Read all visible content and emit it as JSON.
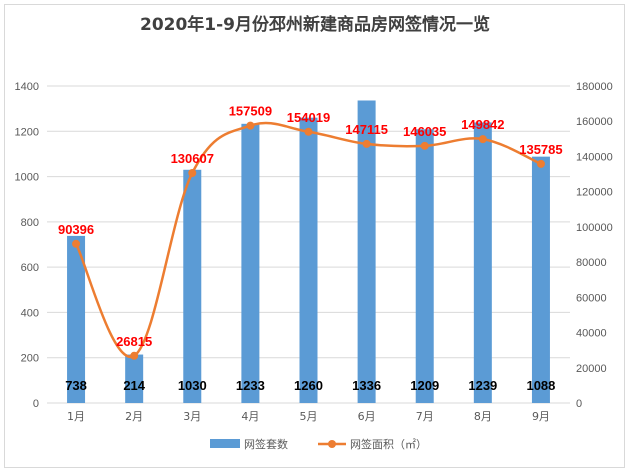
{
  "chart_data": {
    "type": "bar+line",
    "title": "2020年1-9月份邳州新建商品房网签情况一览",
    "categories": [
      "1月",
      "2月",
      "3月",
      "4月",
      "5月",
      "6月",
      "7月",
      "8月",
      "9月"
    ],
    "series": [
      {
        "name": "网签套数",
        "type": "bar",
        "axis": "left",
        "color": "#5b9bd5",
        "values": [
          738,
          214,
          1030,
          1233,
          1260,
          1336,
          1209,
          1239,
          1088
        ]
      },
      {
        "name": "网签面积（㎡）",
        "type": "line",
        "axis": "right",
        "color": "#ed7d31",
        "values": [
          90396,
          26815,
          130607,
          157509,
          154019,
          147115,
          146035,
          149842,
          135785
        ]
      }
    ],
    "y_left": {
      "min": 0,
      "max": 1400,
      "step": 200
    },
    "y_right": {
      "min": 0,
      "max": 180000,
      "step": 20000
    },
    "grid": true,
    "legend_position": "bottom"
  }
}
